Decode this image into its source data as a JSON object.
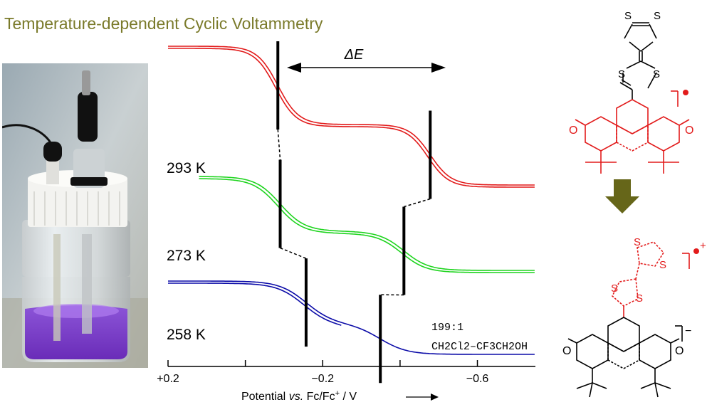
{
  "title": "Temperature-dependent Cyclic Voltammetry",
  "photo_description_icon": "electrochemical-cell-photo",
  "delta_label": "ΔE",
  "solvent": {
    "ratio": "199:1",
    "formula": "CH2Cl2–CF3CH2OH"
  },
  "colors": {
    "title": "#7a7a2a",
    "red": "#e21b1b",
    "green": "#1fd41f",
    "blue": "#0c0ca8",
    "arrow": "#666619"
  },
  "chart_data": {
    "type": "line",
    "title": "Temperature-dependent Cyclic Voltammetry",
    "xlabel": "Potential vs. Fc/Fc+ / V",
    "xlim": [
      0.2,
      -0.75
    ],
    "xticks": [
      0.2,
      0.0,
      -0.2,
      -0.4,
      -0.6
    ],
    "xtick_labels": [
      "+0.2",
      "",
      "−0.2",
      "",
      "−0.6"
    ],
    "series": [
      {
        "name": "293 K",
        "E1": -0.084,
        "E2": -0.478,
        "half_width_1": 0.027,
        "half_width_2": 0.027
      },
      {
        "name": "273 K",
        "E1": -0.09,
        "E2": -0.41,
        "half_width_1": 0.032,
        "half_width_2": 0.032
      },
      {
        "name": "258 K",
        "E1": -0.157,
        "E2": -0.349,
        "half_width_1": 0.035,
        "half_width_2": 0.035
      }
    ]
  },
  "structures": {
    "top": {
      "charge": "•",
      "atoms": [
        "S",
        "S",
        "S",
        "S",
        "O",
        "O"
      ]
    },
    "bottom": {
      "charge_cation": "•+",
      "charge_anion": "−",
      "atoms": [
        "S",
        "S",
        "S",
        "S",
        "O",
        "O"
      ]
    }
  }
}
